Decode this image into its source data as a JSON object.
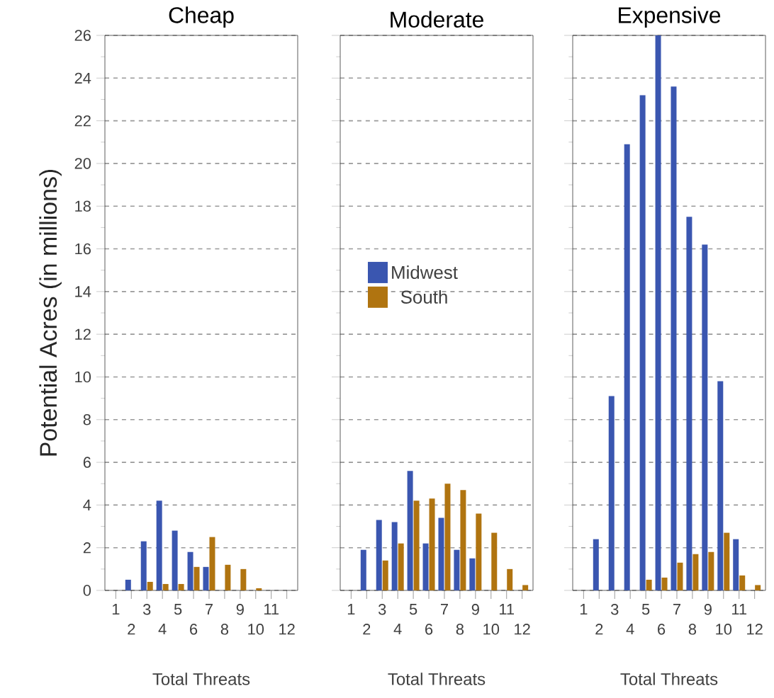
{
  "chart_data": [
    {
      "type": "bar",
      "title": "Cheap",
      "xlabel": "Total Threats",
      "ylabel": "Potential Acres (in millions)",
      "categories": [
        "1",
        "2",
        "3",
        "4",
        "5",
        "6",
        "7",
        "8",
        "9",
        "10",
        "11",
        "12"
      ],
      "ylim": [
        0,
        26
      ],
      "yticks": [
        0,
        2,
        4,
        6,
        8,
        10,
        12,
        14,
        16,
        18,
        20,
        22,
        24,
        26
      ],
      "grid": "y",
      "legend": false,
      "series": [
        {
          "color": "#3a56b0",
          "values": [
            0,
            0.5,
            2.3,
            4.2,
            2.8,
            1.8,
            1.1,
            0,
            0,
            0,
            0,
            0
          ]
        },
        {
          "color": "#b07410",
          "values": [
            0,
            0,
            0.4,
            0.3,
            0.3,
            1.1,
            2.5,
            1.2,
            1.0,
            0.1,
            0,
            0
          ]
        }
      ]
    },
    {
      "type": "bar",
      "title": "Moderate",
      "xlabel": "Total Threats",
      "categories": [
        "1",
        "2",
        "3",
        "4",
        "5",
        "6",
        "7",
        "8",
        "9",
        "10",
        "11",
        "12"
      ],
      "ylim": [
        0,
        26
      ],
      "yticks": [
        0,
        2,
        4,
        6,
        8,
        10,
        12,
        14,
        16,
        18,
        20,
        22,
        24,
        26
      ],
      "grid": "y",
      "legend": "center left",
      "tick_labels": "x",
      "series": [
        {
          "name": "Midwest",
          "color": "#3a56b0",
          "values": [
            0,
            1.9,
            3.3,
            3.2,
            5.6,
            2.2,
            3.4,
            1.9,
            1.5,
            0,
            0,
            0
          ]
        },
        {
          "name": "South",
          "color": "#b07410",
          "values": [
            0,
            0,
            1.4,
            2.2,
            4.2,
            4.3,
            5.0,
            4.7,
            3.6,
            2.7,
            1.0,
            0.25
          ]
        }
      ]
    },
    {
      "type": "bar",
      "title": "Expensive",
      "xlabel": "Total Threats",
      "categories": [
        "1",
        "2",
        "3",
        "4",
        "5",
        "6",
        "7",
        "8",
        "9",
        "10",
        "11",
        "12"
      ],
      "ylim": [
        0,
        26
      ],
      "yticks": [
        0,
        2,
        4,
        6,
        8,
        10,
        12,
        14,
        16,
        18,
        20,
        22,
        24,
        26
      ],
      "grid": "y",
      "legend": false,
      "tick_labels": "x",
      "series": [
        {
          "color": "#3a56b0",
          "values": [
            0,
            2.4,
            9.1,
            20.9,
            23.2,
            26.0,
            23.6,
            17.5,
            16.2,
            9.8,
            2.4,
            0
          ]
        },
        {
          "color": "#b07410",
          "values": [
            0,
            0,
            0,
            0,
            0.5,
            0.6,
            1.3,
            1.7,
            1.8,
            2.7,
            0.7,
            0.25
          ]
        }
      ]
    }
  ]
}
